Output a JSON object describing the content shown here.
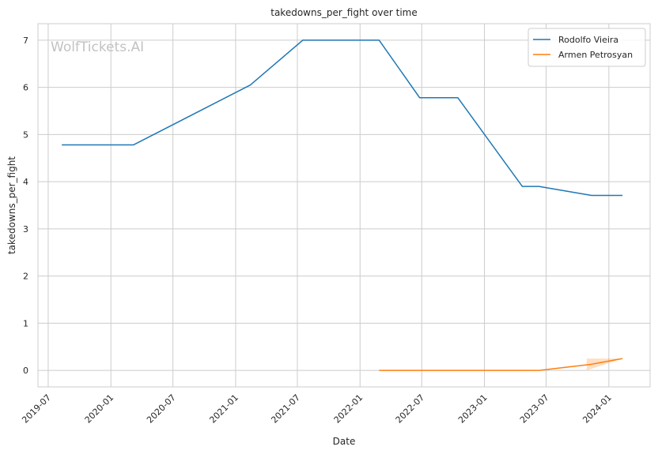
{
  "chart_data": {
    "type": "line",
    "title": "takedowns_per_fight over time",
    "xlabel": "Date",
    "ylabel": "takedowns_per_fight",
    "watermark": "WolfTickets.AI",
    "grid": true,
    "legend_position": "top-right",
    "ylim": [
      -0.35,
      7.35
    ],
    "xlim": [
      "2019-06-01",
      "2024-05-01"
    ],
    "yticks": [
      0,
      1,
      2,
      3,
      4,
      5,
      6,
      7
    ],
    "xticks": [
      "2019-07",
      "2020-01",
      "2020-07",
      "2021-01",
      "2021-07",
      "2022-01",
      "2022-07",
      "2023-01",
      "2023-07",
      "2024-01"
    ],
    "series": [
      {
        "name": "Rodolfo Vieira",
        "color": "#1f77b4",
        "points": [
          {
            "x": "2019-08-10",
            "y": 4.78
          },
          {
            "x": "2020-03-07",
            "y": 4.78
          },
          {
            "x": "2021-02-13",
            "y": 6.05
          },
          {
            "x": "2021-07-17",
            "y": 7.0
          },
          {
            "x": "2022-02-26",
            "y": 7.0
          },
          {
            "x": "2022-06-25",
            "y": 5.78
          },
          {
            "x": "2022-10-15",
            "y": 5.78
          },
          {
            "x": "2023-04-22",
            "y": 3.9
          },
          {
            "x": "2023-06-10",
            "y": 3.9
          },
          {
            "x": "2023-11-11",
            "y": 3.71
          },
          {
            "x": "2024-02-10",
            "y": 3.71
          }
        ]
      },
      {
        "name": "Armen Petrosyan",
        "color": "#ff7f0e",
        "points": [
          {
            "x": "2022-02-26",
            "y": 0.0
          },
          {
            "x": "2023-06-10",
            "y": 0.0
          },
          {
            "x": "2023-11-11",
            "y": 0.13
          },
          {
            "x": "2024-02-10",
            "y": 0.25
          }
        ],
        "band": [
          {
            "x": "2023-10-28",
            "lo": 0.0,
            "hi": 0.25
          },
          {
            "x": "2024-02-10",
            "lo": 0.25,
            "hi": 0.25
          }
        ]
      }
    ]
  }
}
